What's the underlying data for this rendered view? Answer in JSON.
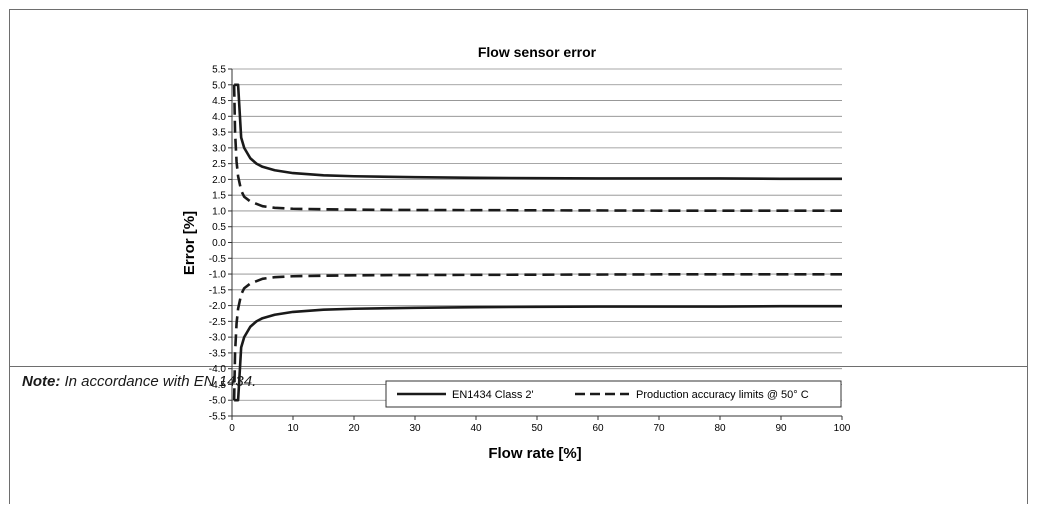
{
  "chart_data": {
    "type": "line",
    "title": "Flow sensor error",
    "xlabel": "Flow rate [%]",
    "ylabel": "Error [%]",
    "xlim": [
      0,
      100
    ],
    "ylim": [
      -5.5,
      5.5
    ],
    "x_ticks": [
      "0",
      "10",
      "20",
      "30",
      "40",
      "50",
      "60",
      "70",
      "80",
      "90",
      "100"
    ],
    "y_ticks": [
      "5.5",
      "5.0",
      "4.5",
      "4.0",
      "3.5",
      "3.0",
      "2.5",
      "2.0",
      "1.5",
      "1.0",
      "0.5",
      "0.0",
      "-0.5",
      "-1.0",
      "-1.5",
      "-2.0",
      "-2.5",
      "-3.0",
      "-3.5",
      "-4.0",
      "-4.5",
      "-5.0",
      "-5.5"
    ],
    "grid": "horizontal",
    "legend_position": "bottom-right",
    "series": [
      {
        "name": "EN1434 Class 2'",
        "style": "solid",
        "x": [
          0.35,
          1,
          1.5,
          2,
          3,
          4,
          5,
          7,
          10,
          15,
          20,
          30,
          40,
          50,
          60,
          70,
          80,
          90,
          100
        ],
        "upper": [
          5.0,
          5.0,
          3.33,
          3.0,
          2.67,
          2.5,
          2.4,
          2.29,
          2.2,
          2.13,
          2.1,
          2.07,
          2.05,
          2.04,
          2.03,
          2.03,
          2.03,
          2.02,
          2.02
        ],
        "lower": [
          -5.0,
          -5.0,
          -3.33,
          -3.0,
          -2.67,
          -2.5,
          -2.4,
          -2.29,
          -2.2,
          -2.13,
          -2.1,
          -2.07,
          -2.05,
          -2.04,
          -2.03,
          -2.03,
          -2.03,
          -2.02,
          -2.02
        ]
      },
      {
        "name": "Production accuracy limits @ 50° C",
        "style": "dashed",
        "x": [
          0.35,
          0.5,
          0.75,
          1,
          1.5,
          2,
          3,
          5,
          7,
          10,
          20,
          30,
          50,
          70,
          100
        ],
        "upper": [
          5.0,
          3.5,
          2.56,
          2.1,
          1.65,
          1.45,
          1.3,
          1.15,
          1.1,
          1.07,
          1.04,
          1.03,
          1.02,
          1.01,
          1.01
        ],
        "lower": [
          -5.0,
          -3.5,
          -2.56,
          -2.1,
          -1.65,
          -1.45,
          -1.3,
          -1.15,
          -1.1,
          -1.07,
          -1.04,
          -1.03,
          -1.02,
          -1.01,
          -1.01
        ]
      }
    ]
  },
  "note": {
    "label": "Note:",
    "text": " In accordance with EN 1434."
  }
}
